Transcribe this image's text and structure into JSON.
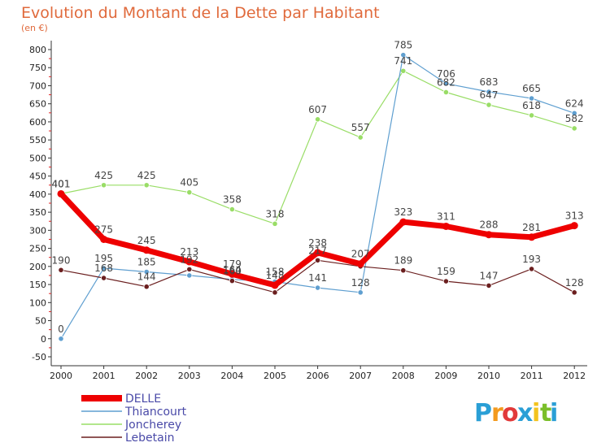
{
  "chart_data": {
    "type": "line",
    "title": "Evolution du Montant de la Dette par Habitant",
    "subtitle": "(en €)",
    "x": [
      "2000",
      "2001",
      "2002",
      "2003",
      "2004",
      "2005",
      "2006",
      "2007",
      "2008",
      "2009",
      "2010",
      "2011",
      "2012"
    ],
    "yticks": [
      "-50",
      "0",
      "50",
      "100",
      "150",
      "200",
      "250",
      "300",
      "350",
      "400",
      "450",
      "500",
      "550",
      "600",
      "650",
      "700",
      "750",
      "800"
    ],
    "ylim": [
      -50,
      800
    ],
    "grid": false,
    "legend": "bottom-left",
    "series": [
      {
        "name": "DELLE",
        "color": "#ee0000",
        "width": 7,
        "values": [
          401,
          275,
          245,
          213,
          179,
          148,
          238,
          207,
          323,
          311,
          288,
          281,
          313
        ],
        "labels": [
          "401",
          "275",
          "245",
          "213",
          "179",
          "148",
          "238",
          "207",
          "323",
          "311",
          "288",
          "281",
          "313"
        ]
      },
      {
        "name": "Thiancourt",
        "color": "#5f9fd0",
        "width": 1.2,
        "values": [
          0,
          195,
          185,
          175,
          164,
          158,
          141,
          128,
          785,
          706,
          683,
          665,
          624
        ],
        "labels": [
          "0",
          "195",
          "185",
          "",
          "164",
          "158",
          "141",
          "128",
          "785",
          "706",
          "683",
          "665",
          "624"
        ]
      },
      {
        "name": "Joncherey",
        "color": "#99dd66",
        "width": 1.2,
        "values": [
          401,
          425,
          425,
          405,
          358,
          318,
          607,
          557,
          741,
          682,
          647,
          618,
          582
        ],
        "labels": [
          "401",
          "425",
          "425",
          "405",
          "358",
          "318",
          "607",
          "557",
          "741",
          "682",
          "647",
          "618",
          "582"
        ]
      },
      {
        "name": "Lebetain",
        "color": "#6b1f1f",
        "width": 1.2,
        "values": [
          190,
          168,
          144,
          192,
          160,
          128,
          217,
          200,
          189,
          159,
          147,
          193,
          128
        ],
        "labels": [
          "190",
          "168",
          "144",
          "192",
          "160",
          "",
          "217",
          "",
          "189",
          "159",
          "147",
          "193",
          "128"
        ]
      }
    ],
    "logo": {
      "text": "Proxiti",
      "letters": [
        "P",
        "r",
        "o",
        "x",
        "i",
        "t",
        "i"
      ],
      "colors": [
        "#2a9fd6",
        "#f39a1e",
        "#e23a3a",
        "#2a9fd6",
        "#f3c31e",
        "#7bbf2a",
        "#2a9fd6"
      ]
    }
  }
}
